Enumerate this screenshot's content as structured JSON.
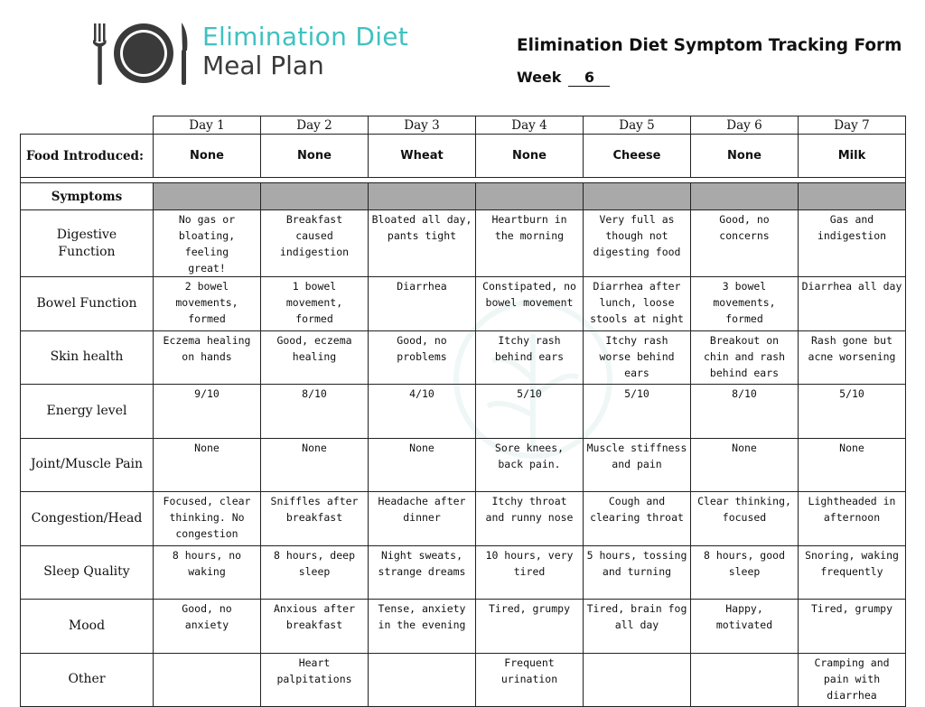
{
  "header": {
    "logo_line1": "Elimination Diet",
    "logo_line2": "Meal Plan",
    "form_title": "Elimination Diet Symptom Tracking Form",
    "week_label": "Week",
    "week_value": "6"
  },
  "table": {
    "days": [
      "Day 1",
      "Day 2",
      "Day 3",
      "Day 4",
      "Day 5",
      "Day 6",
      "Day 7"
    ],
    "food_label": "Food Introduced:",
    "foods": [
      "None",
      "None",
      "Wheat",
      "None",
      "Cheese",
      "None",
      "Milk"
    ],
    "symptoms_label": "Symptoms",
    "rows": [
      {
        "label": "Digestive\nFunction",
        "cells": [
          "No gas or\nbloating, feeling\ngreat!",
          "Breakfast\ncaused\nindigestion",
          "Bloated all day,\npants tight",
          "Heartburn in\nthe morning",
          "Very full as\nthough not\ndigesting food",
          "Good, no\nconcerns",
          "Gas and\nindigestion"
        ]
      },
      {
        "label": "Bowel Function",
        "cells": [
          "2 bowel\nmovements,\nformed",
          "1 bowel\nmovement,\nformed",
          "Diarrhea",
          "Constipated, no\nbowel movement",
          "Diarrhea after\nlunch, loose\nstools at night",
          "3 bowel\nmovements,\nformed",
          "Diarrhea all day"
        ]
      },
      {
        "label": "Skin health",
        "cells": [
          "Eczema healing\non hands",
          "Good, eczema\nhealing",
          "Good, no\nproblems",
          "Itchy rash\nbehind ears",
          "Itchy rash\nworse behind\nears",
          "Breakout on\nchin and rash\nbehind ears",
          "Rash gone but\nacne worsening"
        ]
      },
      {
        "label": "Energy level",
        "cells": [
          "9/10",
          "8/10",
          "4/10",
          "5/10",
          "5/10",
          "8/10",
          "5/10"
        ]
      },
      {
        "label": "Joint/Muscle Pain",
        "cells": [
          "None",
          "None",
          "None",
          "Sore knees,\nback pain.",
          "Muscle stiffness\nand pain",
          "None",
          "None"
        ]
      },
      {
        "label": "Congestion/Head",
        "cells": [
          "Focused, clear\nthinking. No\ncongestion",
          "Sniffles after\nbreakfast",
          "Headache after\ndinner",
          "Itchy throat\nand runny nose",
          "Cough and\nclearing throat",
          "Clear thinking,\nfocused",
          "Lightheaded in\nafternoon"
        ]
      },
      {
        "label": "Sleep Quality",
        "cells": [
          "8 hours, no\nwaking",
          "8 hours, deep\nsleep",
          "Night sweats,\nstrange dreams",
          "10 hours, very\ntired",
          "5 hours, tossing\nand turning",
          "8 hours, good\nsleep",
          "Snoring, waking\nfrequently"
        ]
      },
      {
        "label": "Mood",
        "cells": [
          "Good, no\nanxiety",
          "Anxious after\nbreakfast",
          "Tense, anxiety\nin the evening",
          "Tired, grumpy",
          "Tired, brain fog\nall day",
          "Happy,\nmotivated",
          "Tired, grumpy"
        ]
      },
      {
        "label": "Other",
        "cells": [
          "",
          "Heart\npalpitations",
          "",
          "Frequent\nurination",
          "",
          "",
          "Cramping and\npain with\ndiarrhea"
        ]
      }
    ]
  },
  "colors": {
    "logo_accent": "#3fc1c0",
    "logo_dark": "#3a3a3a",
    "symptoms_fill": "#a9a9a9"
  },
  "icons": {
    "logo": "plate-fork-knife-icon"
  }
}
